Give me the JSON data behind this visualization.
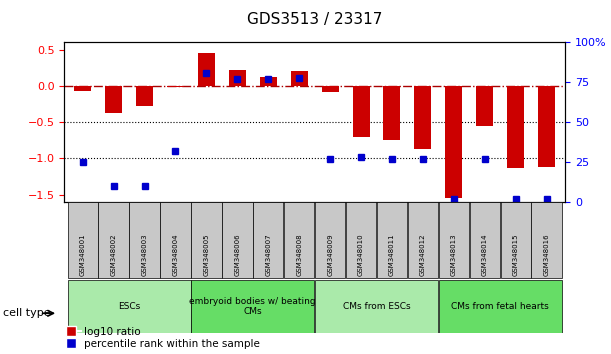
{
  "title": "GDS3513 / 23317",
  "samples": [
    "GSM348001",
    "GSM348002",
    "GSM348003",
    "GSM348004",
    "GSM348005",
    "GSM348006",
    "GSM348007",
    "GSM348008",
    "GSM348009",
    "GSM348010",
    "GSM348011",
    "GSM348012",
    "GSM348013",
    "GSM348014",
    "GSM348015",
    "GSM348016"
  ],
  "log10_ratio": [
    -0.07,
    -0.38,
    -0.28,
    -0.01,
    0.46,
    0.22,
    0.12,
    0.2,
    -0.09,
    -0.7,
    -0.75,
    -0.87,
    -1.55,
    -0.55,
    -1.13,
    -1.12
  ],
  "percentile_notes": [
    25,
    10,
    10,
    32,
    81,
    77,
    77,
    78,
    27,
    28,
    27,
    27,
    2,
    27,
    2,
    2
  ],
  "cell_type_groups": [
    {
      "label": "ESCs",
      "start": 0,
      "end": 3,
      "color": "#AAEAAA"
    },
    {
      "label": "embryoid bodies w/ beating\nCMs",
      "start": 4,
      "end": 7,
      "color": "#66DD66"
    },
    {
      "label": "CMs from ESCs",
      "start": 8,
      "end": 11,
      "color": "#AAEAAA"
    },
    {
      "label": "CMs from fetal hearts",
      "start": 12,
      "end": 15,
      "color": "#66DD66"
    }
  ],
  "bar_color": "#CC0000",
  "blue_color": "#0000CC",
  "ylim_left": [
    -1.6,
    0.6
  ],
  "ylim_right": [
    0,
    100
  ],
  "yticks_left": [
    -1.5,
    -1.0,
    -0.5,
    0.0,
    0.5
  ],
  "yticks_right": [
    0,
    25,
    50,
    75,
    100
  ]
}
